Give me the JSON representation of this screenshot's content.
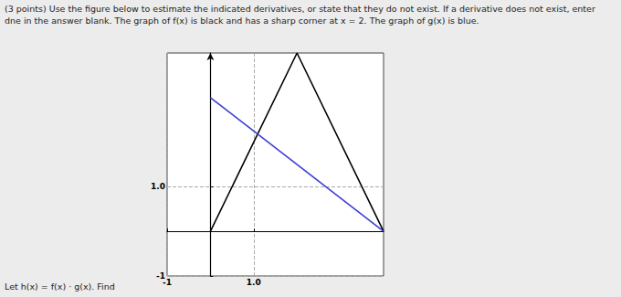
{
  "header": {
    "lines": [
      "(3 points) Use the figure below to estimate the indicated derivatives, or state that they do not exist. If a derivative does not exist, enter",
      "dne in the answer blank. The graph of f(x) is black and has a sharp corner at x = 2. The graph of g(x) is blue."
    ]
  },
  "question": "Let h(x) = f(x) · g(x). Find",
  "chart_data": {
    "type": "line",
    "series": [
      {
        "color": "#000000",
        "x": [
          0,
          2,
          4
        ],
        "values": [
          0,
          4,
          0
        ]
      },
      {
        "color": "#3d3dd4",
        "x": [
          0,
          4
        ],
        "values": [
          3,
          0
        ]
      }
    ],
    "xlim": [
      -1,
      4
    ],
    "ylim": [
      -1,
      4
    ],
    "xticks": [
      -1,
      {
        "value": 1,
        "label": "1.0"
      }
    ],
    "yticks": [
      -1,
      {
        "value": 1,
        "label": "1.0"
      }
    ],
    "grid": true
  }
}
